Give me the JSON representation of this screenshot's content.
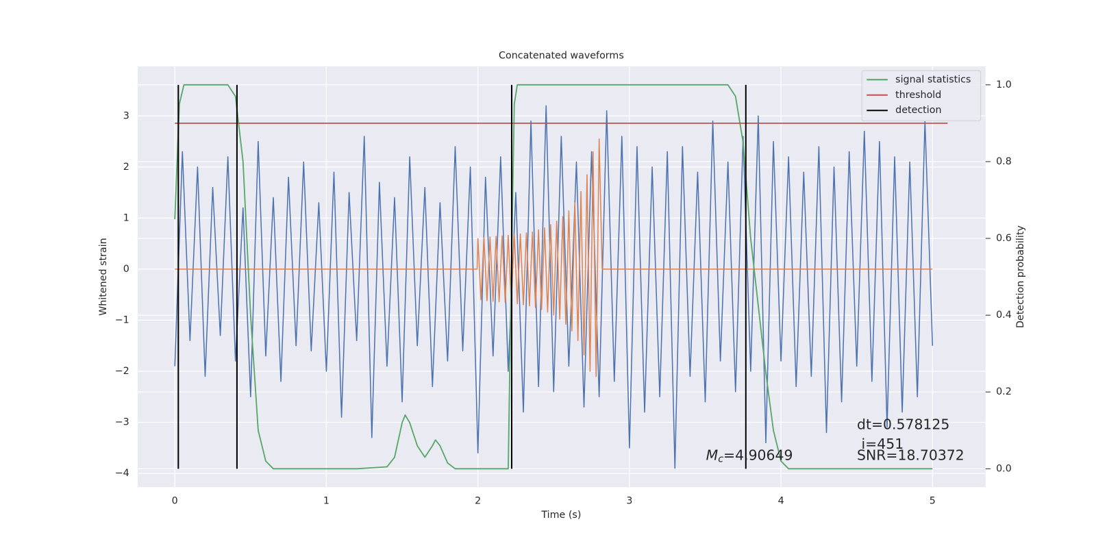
{
  "chart_data": {
    "type": "line",
    "title": "Concatenated waveforms",
    "x_label": "Time (s)",
    "y_label": "Whitened strain",
    "y2_label": "Detection probability",
    "xlim": [
      -0.245,
      5.35
    ],
    "ylim": [
      -4.27,
      3.97
    ],
    "y2lim": [
      -0.048,
      1.048
    ],
    "xticks": [
      0,
      1,
      2,
      3,
      4,
      5
    ],
    "yticks": [
      {
        "value": -4,
        "label": "−4"
      },
      {
        "value": -3,
        "label": "−3"
      },
      {
        "value": -2,
        "label": "−2"
      },
      {
        "value": -1,
        "label": "−1"
      },
      0,
      1,
      2,
      3
    ],
    "y2ticks": [
      {
        "value": 0,
        "label": "0.0"
      },
      {
        "value": 0.2,
        "label": "0.2"
      },
      {
        "value": 0.4,
        "label": "0.4"
      },
      {
        "value": 0.6,
        "label": "0.6"
      },
      {
        "value": 0.8,
        "label": "0.8"
      },
      {
        "value": 1,
        "label": "1.0"
      }
    ],
    "grid": true,
    "legend": "upper right",
    "series": [
      {
        "color": "#4c72b0",
        "x": [
          0,
          0.05,
          0.1,
          0.15,
          0.2,
          0.25,
          0.3,
          0.35,
          0.4,
          0.45,
          0.5,
          0.55,
          0.6,
          0.65,
          0.7,
          0.75,
          0.8,
          0.85,
          0.9,
          0.95,
          1,
          1.05,
          1.1,
          1.15,
          1.2,
          1.25,
          1.3,
          1.35,
          1.4,
          1.45,
          1.5,
          1.55,
          1.6,
          1.65,
          1.7,
          1.75,
          1.8,
          1.85,
          1.9,
          1.95,
          2,
          2.05,
          2.1,
          2.15,
          2.2,
          2.25,
          2.3,
          2.35,
          2.4,
          2.45,
          2.5,
          2.55,
          2.6,
          2.65,
          2.7,
          2.75,
          2.8,
          2.85,
          2.9,
          2.95,
          3,
          3.05,
          3.1,
          3.15,
          3.2,
          3.25,
          3.3,
          3.35,
          3.4,
          3.45,
          3.5,
          3.55,
          3.6,
          3.65,
          3.7,
          3.75,
          3.8,
          3.85,
          3.9,
          3.95,
          4,
          4.05,
          4.1,
          4.15,
          4.2,
          4.25,
          4.3,
          4.35,
          4.4,
          4.45,
          4.5,
          4.55,
          4.6,
          4.65,
          4.7,
          4.75,
          4.8,
          4.85,
          4.9,
          4.95,
          5
        ],
        "values": [
          -1.9,
          2.3,
          -1.4,
          2.0,
          -2.1,
          1.6,
          -1.3,
          2.2,
          -1.8,
          1.2,
          -2.5,
          2.5,
          -1.7,
          1.4,
          -2.2,
          1.8,
          -1.5,
          2.1,
          -1.6,
          1.3,
          -2.0,
          1.9,
          -2.9,
          1.5,
          -1.4,
          2.6,
          -3.3,
          1.7,
          -1.9,
          1.4,
          -2.6,
          2.2,
          -1.5,
          1.6,
          -2.3,
          1.3,
          -1.8,
          2.4,
          -1.6,
          2.0,
          -3.6,
          1.8,
          -1.7,
          2.2,
          -2.0,
          1.5,
          -2.8,
          2.9,
          -2.3,
          3.2,
          -2.4,
          2.6,
          -1.9,
          2.1,
          -2.7,
          2.3,
          -2.5,
          3.1,
          -2.2,
          2.6,
          -3.5,
          2.4,
          -2.8,
          2.0,
          -2.5,
          2.3,
          -3.9,
          2.4,
          -2.1,
          1.9,
          -2.6,
          2.9,
          -1.8,
          2.1,
          -2.4,
          2.6,
          -2.0,
          3.0,
          -3.4,
          2.5,
          -1.8,
          2.2,
          -2.3,
          1.9,
          -2.1,
          2.4,
          -3.2,
          2.0,
          -2.6,
          2.3,
          -1.9,
          2.7,
          -2.2,
          2.5,
          -3.1,
          2.2,
          -2.8,
          2.1,
          -2.5,
          2.9,
          -1.5
        ]
      },
      {
        "color": "#dd8452",
        "x": [
          0,
          1.995,
          2,
          2.02,
          2.04,
          2.06,
          2.08,
          2.1,
          2.12,
          2.14,
          2.16,
          2.18,
          2.2,
          2.22,
          2.24,
          2.26,
          2.28,
          2.3,
          2.32,
          2.34,
          2.36,
          2.38,
          2.4,
          2.42,
          2.44,
          2.46,
          2.48,
          2.5,
          2.52,
          2.54,
          2.56,
          2.58,
          2.6,
          2.62,
          2.64,
          2.66,
          2.68,
          2.7,
          2.72,
          2.74,
          2.76,
          2.78,
          2.8,
          2.82,
          5
        ],
        "values": [
          0,
          0,
          0.6,
          -0.6,
          0.62,
          -0.62,
          0.63,
          -0.63,
          0.64,
          -0.64,
          0.65,
          -0.65,
          0.66,
          -0.67,
          0.68,
          -0.68,
          0.69,
          -0.7,
          0.71,
          -0.72,
          0.73,
          -0.75,
          0.77,
          -0.79,
          0.81,
          -0.84,
          0.87,
          -0.9,
          0.94,
          -0.98,
          1.03,
          -1.08,
          1.14,
          -1.21,
          1.3,
          -1.4,
          1.52,
          -1.68,
          1.85,
          -2.0,
          2.3,
          -2.1,
          2.55,
          0,
          0
        ]
      },
      {
        "name": "signal statistics",
        "color": "#55a868",
        "axis": "y2",
        "x": [
          0,
          0.03,
          0.06,
          0.35,
          0.4,
          0.45,
          0.5,
          0.55,
          0.6,
          0.65,
          1.2,
          1.4,
          1.45,
          1.5,
          1.52,
          1.55,
          1.6,
          1.65,
          1.7,
          1.72,
          1.75,
          1.8,
          1.85,
          2.2,
          2.22,
          2.24,
          2.26,
          3.65,
          3.7,
          3.75,
          3.8,
          3.9,
          3.95,
          4,
          4.05,
          5
        ],
        "values": [
          0.65,
          0.95,
          1,
          1,
          0.97,
          0.8,
          0.4,
          0.1,
          0.02,
          0,
          0,
          0.005,
          0.03,
          0.12,
          0.14,
          0.12,
          0.06,
          0.03,
          0.06,
          0.075,
          0.06,
          0.015,
          0,
          0,
          0.5,
          0.95,
          1,
          1,
          0.97,
          0.85,
          0.6,
          0.25,
          0.1,
          0.02,
          0,
          0
        ]
      },
      {
        "name": "threshold",
        "color": "#c44e52",
        "axis": "y2",
        "x": [
          0,
          5.1
        ],
        "values": [
          0.9,
          0.9
        ]
      },
      {
        "name": "detection",
        "color": "#000000",
        "axis": "y2",
        "kind": "vlines",
        "x": [
          0.023,
          0.41,
          2.223,
          3.768
        ],
        "ymin": 0,
        "ymax": 1
      }
    ],
    "annotations": {
      "mc": {
        "symbol": "M",
        "subscript": "c",
        "text": "=4.90649"
      },
      "dt": "dt=0.578125",
      "i": " i=451",
      "snr": "SNR=18.70372"
    }
  }
}
